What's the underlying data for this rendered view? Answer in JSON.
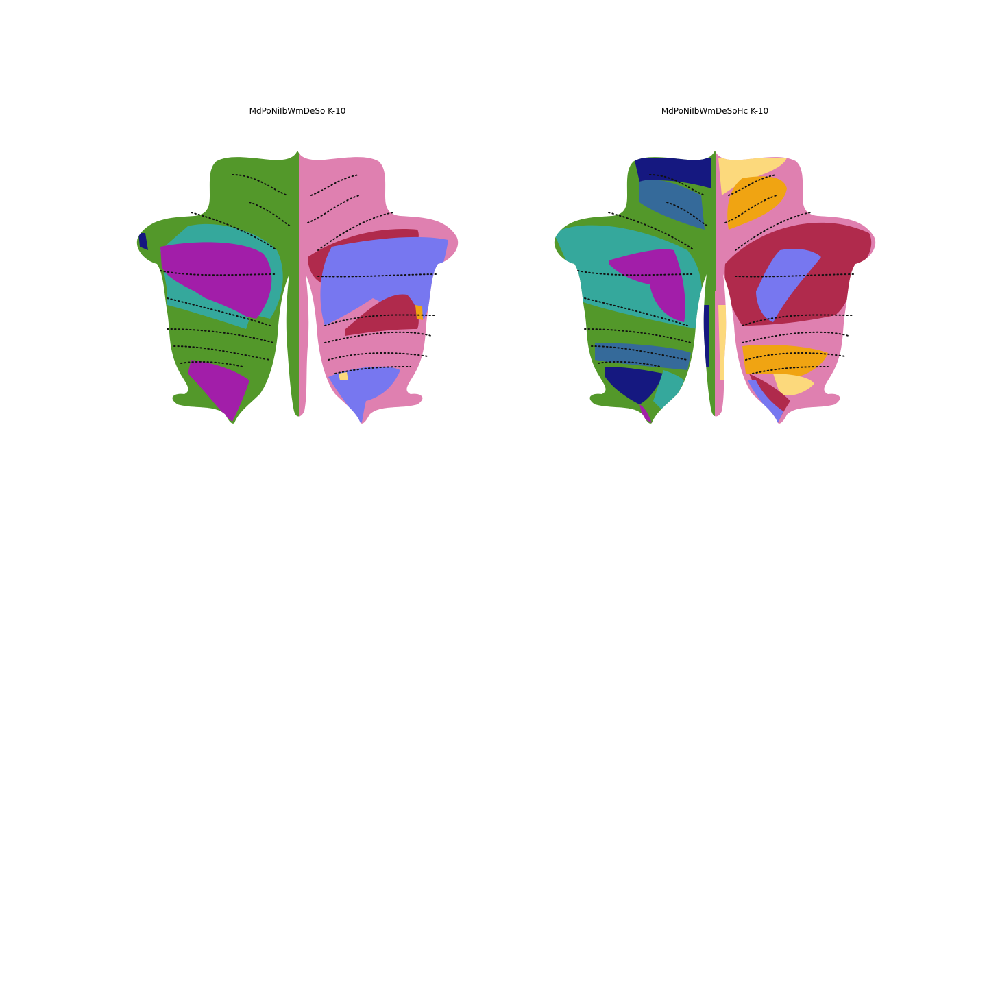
{
  "panels": [
    {
      "title": "MdPoNiIbWmDeSo K-10",
      "parcels": [
        "green",
        "pink",
        "teal",
        "magenta",
        "periwinkle",
        "crimson",
        "navy",
        "orange",
        "yellow"
      ]
    },
    {
      "title": "MdPoNiIbWmDeSoHc K-10",
      "parcels": [
        "navy",
        "steelblue",
        "green",
        "yellow",
        "orange",
        "pink",
        "teal",
        "magenta",
        "crimson",
        "periwinkle"
      ]
    }
  ],
  "colors": {
    "green": "#53982a",
    "pink": "#df80b0",
    "teal": "#35a89c",
    "magenta": "#a21ea9",
    "periwinkle": "#7777f0",
    "crimson": "#b02a4c",
    "navy": "#151880",
    "steelblue": "#356a9a",
    "orange": "#f0a412",
    "yellow": "#fcd97c",
    "background": "#ffffff",
    "lobule_lines": "#111111"
  }
}
